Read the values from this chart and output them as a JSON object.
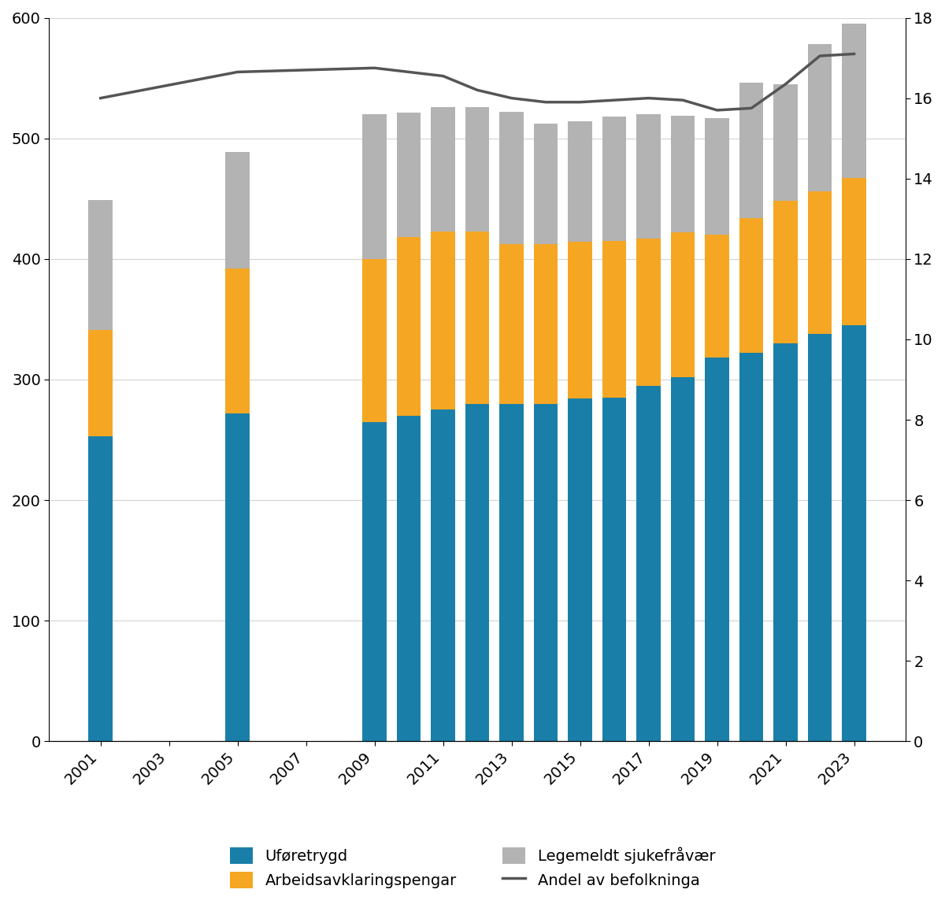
{
  "years": [
    2001,
    2005,
    2009,
    2010,
    2011,
    2012,
    2013,
    2014,
    2015,
    2016,
    2017,
    2018,
    2019,
    2020,
    2021,
    2022,
    2023
  ],
  "uforetrygd": [
    253,
    272,
    265,
    270,
    275,
    280,
    280,
    280,
    284,
    285,
    295,
    302,
    318,
    322,
    330,
    338,
    345
  ],
  "arbeidsavklaringspengar": [
    88,
    120,
    135,
    148,
    148,
    143,
    132,
    132,
    130,
    130,
    122,
    120,
    102,
    112,
    118,
    118,
    122
  ],
  "legemeldt_sjukefravær": [
    108,
    97,
    120,
    103,
    103,
    103,
    110,
    100,
    100,
    103,
    103,
    97,
    97,
    112,
    97,
    122,
    128
  ],
  "andel_av_befolkninga": [
    16.0,
    16.65,
    16.75,
    16.65,
    16.55,
    16.2,
    16.0,
    15.9,
    15.9,
    15.95,
    16.0,
    15.95,
    15.7,
    15.75,
    16.35,
    17.05,
    17.1
  ],
  "xtick_years": [
    2001,
    2003,
    2005,
    2007,
    2009,
    2011,
    2013,
    2015,
    2017,
    2019,
    2021,
    2023
  ],
  "bar_width": 0.7,
  "color_uforetrygd": "#1a7fa8",
  "color_arbeidsavklaringspengar": "#f5a623",
  "color_legemeldt": "#b3b3b3",
  "color_line": "#555555",
  "ylim_left": [
    0,
    600
  ],
  "ylim_right": [
    0,
    18
  ],
  "yticks_left": [
    0,
    100,
    200,
    300,
    400,
    500,
    600
  ],
  "yticks_right": [
    0,
    2,
    4,
    6,
    8,
    10,
    12,
    14,
    16,
    18
  ],
  "legend_labels": [
    "Uføretrygd",
    "Arbeidsavklaringspengar",
    "Legemeldt sjukefråvær",
    "Andel av befolkninga"
  ],
  "xlim": [
    1999.5,
    2024.5
  ],
  "figsize": [
    12.0,
    11.67
  ],
  "dpi": 100
}
